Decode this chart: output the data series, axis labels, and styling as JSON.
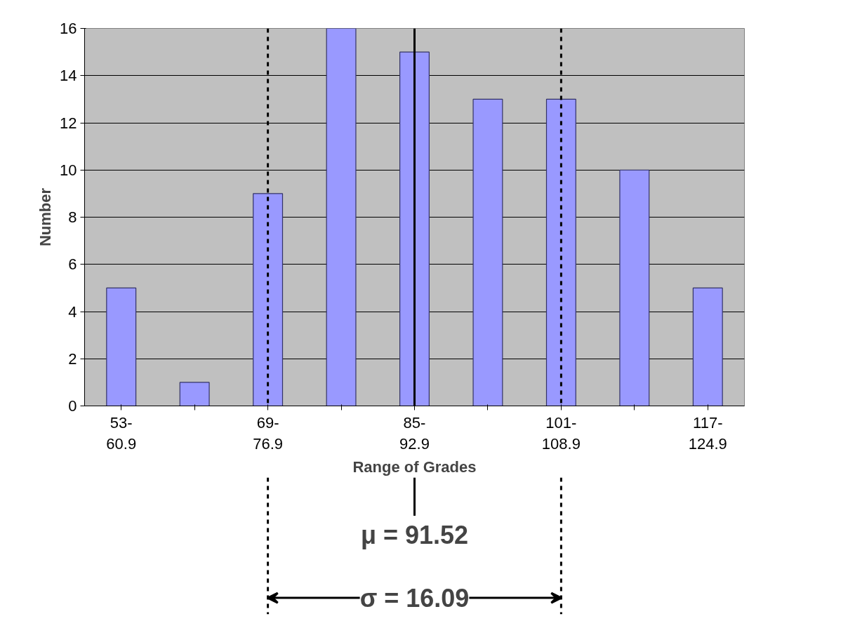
{
  "chart_data": {
    "type": "bar",
    "categories": [
      "53-\n60.9",
      null,
      "69-\n76.9",
      null,
      "85-\n92.9",
      null,
      "101-\n108.9",
      null,
      "117-\n124.9"
    ],
    "values": [
      5,
      1,
      9,
      16,
      15,
      13,
      13,
      10,
      5
    ],
    "color": "#9999ff",
    "ylim": [
      0,
      16
    ],
    "yticks": [
      0,
      2,
      4,
      6,
      8,
      10,
      12,
      14,
      16
    ],
    "xlabel": "Range of Grades",
    "ylabel": "Number",
    "grid": "y",
    "ref_lines": [
      {
        "axis": "x",
        "value": "85-\n92.9",
        "line_style": "solid"
      },
      {
        "axis": "x",
        "value": "69-\n76.9",
        "line_style": "dashed"
      },
      {
        "axis": "x",
        "value": "101-\n108.9",
        "line_style": "dashed"
      }
    ],
    "annotations": [
      "μ = 91.52",
      "σ = 16.09"
    ]
  }
}
